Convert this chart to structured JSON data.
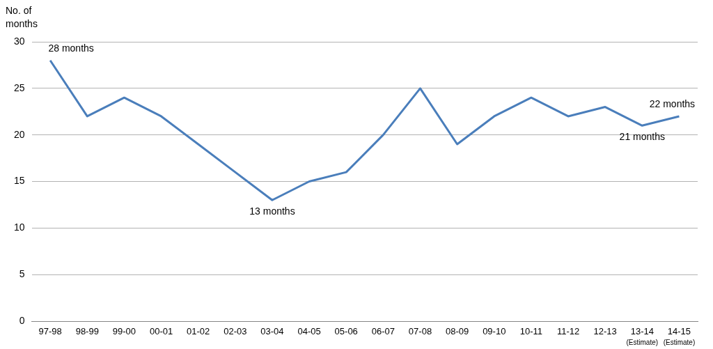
{
  "chart_data": {
    "type": "line",
    "ylabel": "No. of\nmonths",
    "categories": [
      "97-98",
      "98-99",
      "99-00",
      "00-01",
      "01-02",
      "02-03",
      "03-04",
      "04-05",
      "05-06",
      "06-07",
      "07-08",
      "08-09",
      "09-10",
      "10-11",
      "11-12",
      "12-13",
      "13-14\n(Estimate)",
      "14-15\n(Estimate)"
    ],
    "series": [
      {
        "color": "#4a7ebb",
        "values": [
          28,
          22,
          24,
          22,
          19,
          16,
          13,
          15,
          16,
          20,
          25,
          19,
          22,
          24,
          22,
          23,
          21,
          22
        ]
      }
    ],
    "ylim": [
      0,
      30
    ],
    "yticks": [
      0,
      5,
      10,
      15,
      20,
      25,
      30
    ],
    "grid": "y",
    "legend": false,
    "marker": "none",
    "line_style": "solid",
    "annotations": [
      {
        "text": "28 months",
        "x": "97-98",
        "y": 28
      },
      {
        "text": "13 months",
        "x": "03-04",
        "y": 13
      },
      {
        "text": "21 months",
        "x": "13-14\n(Estimate)",
        "y": 21
      },
      {
        "text": "22 months",
        "x": "14-15\n(Estimate)",
        "y": 22
      }
    ]
  }
}
